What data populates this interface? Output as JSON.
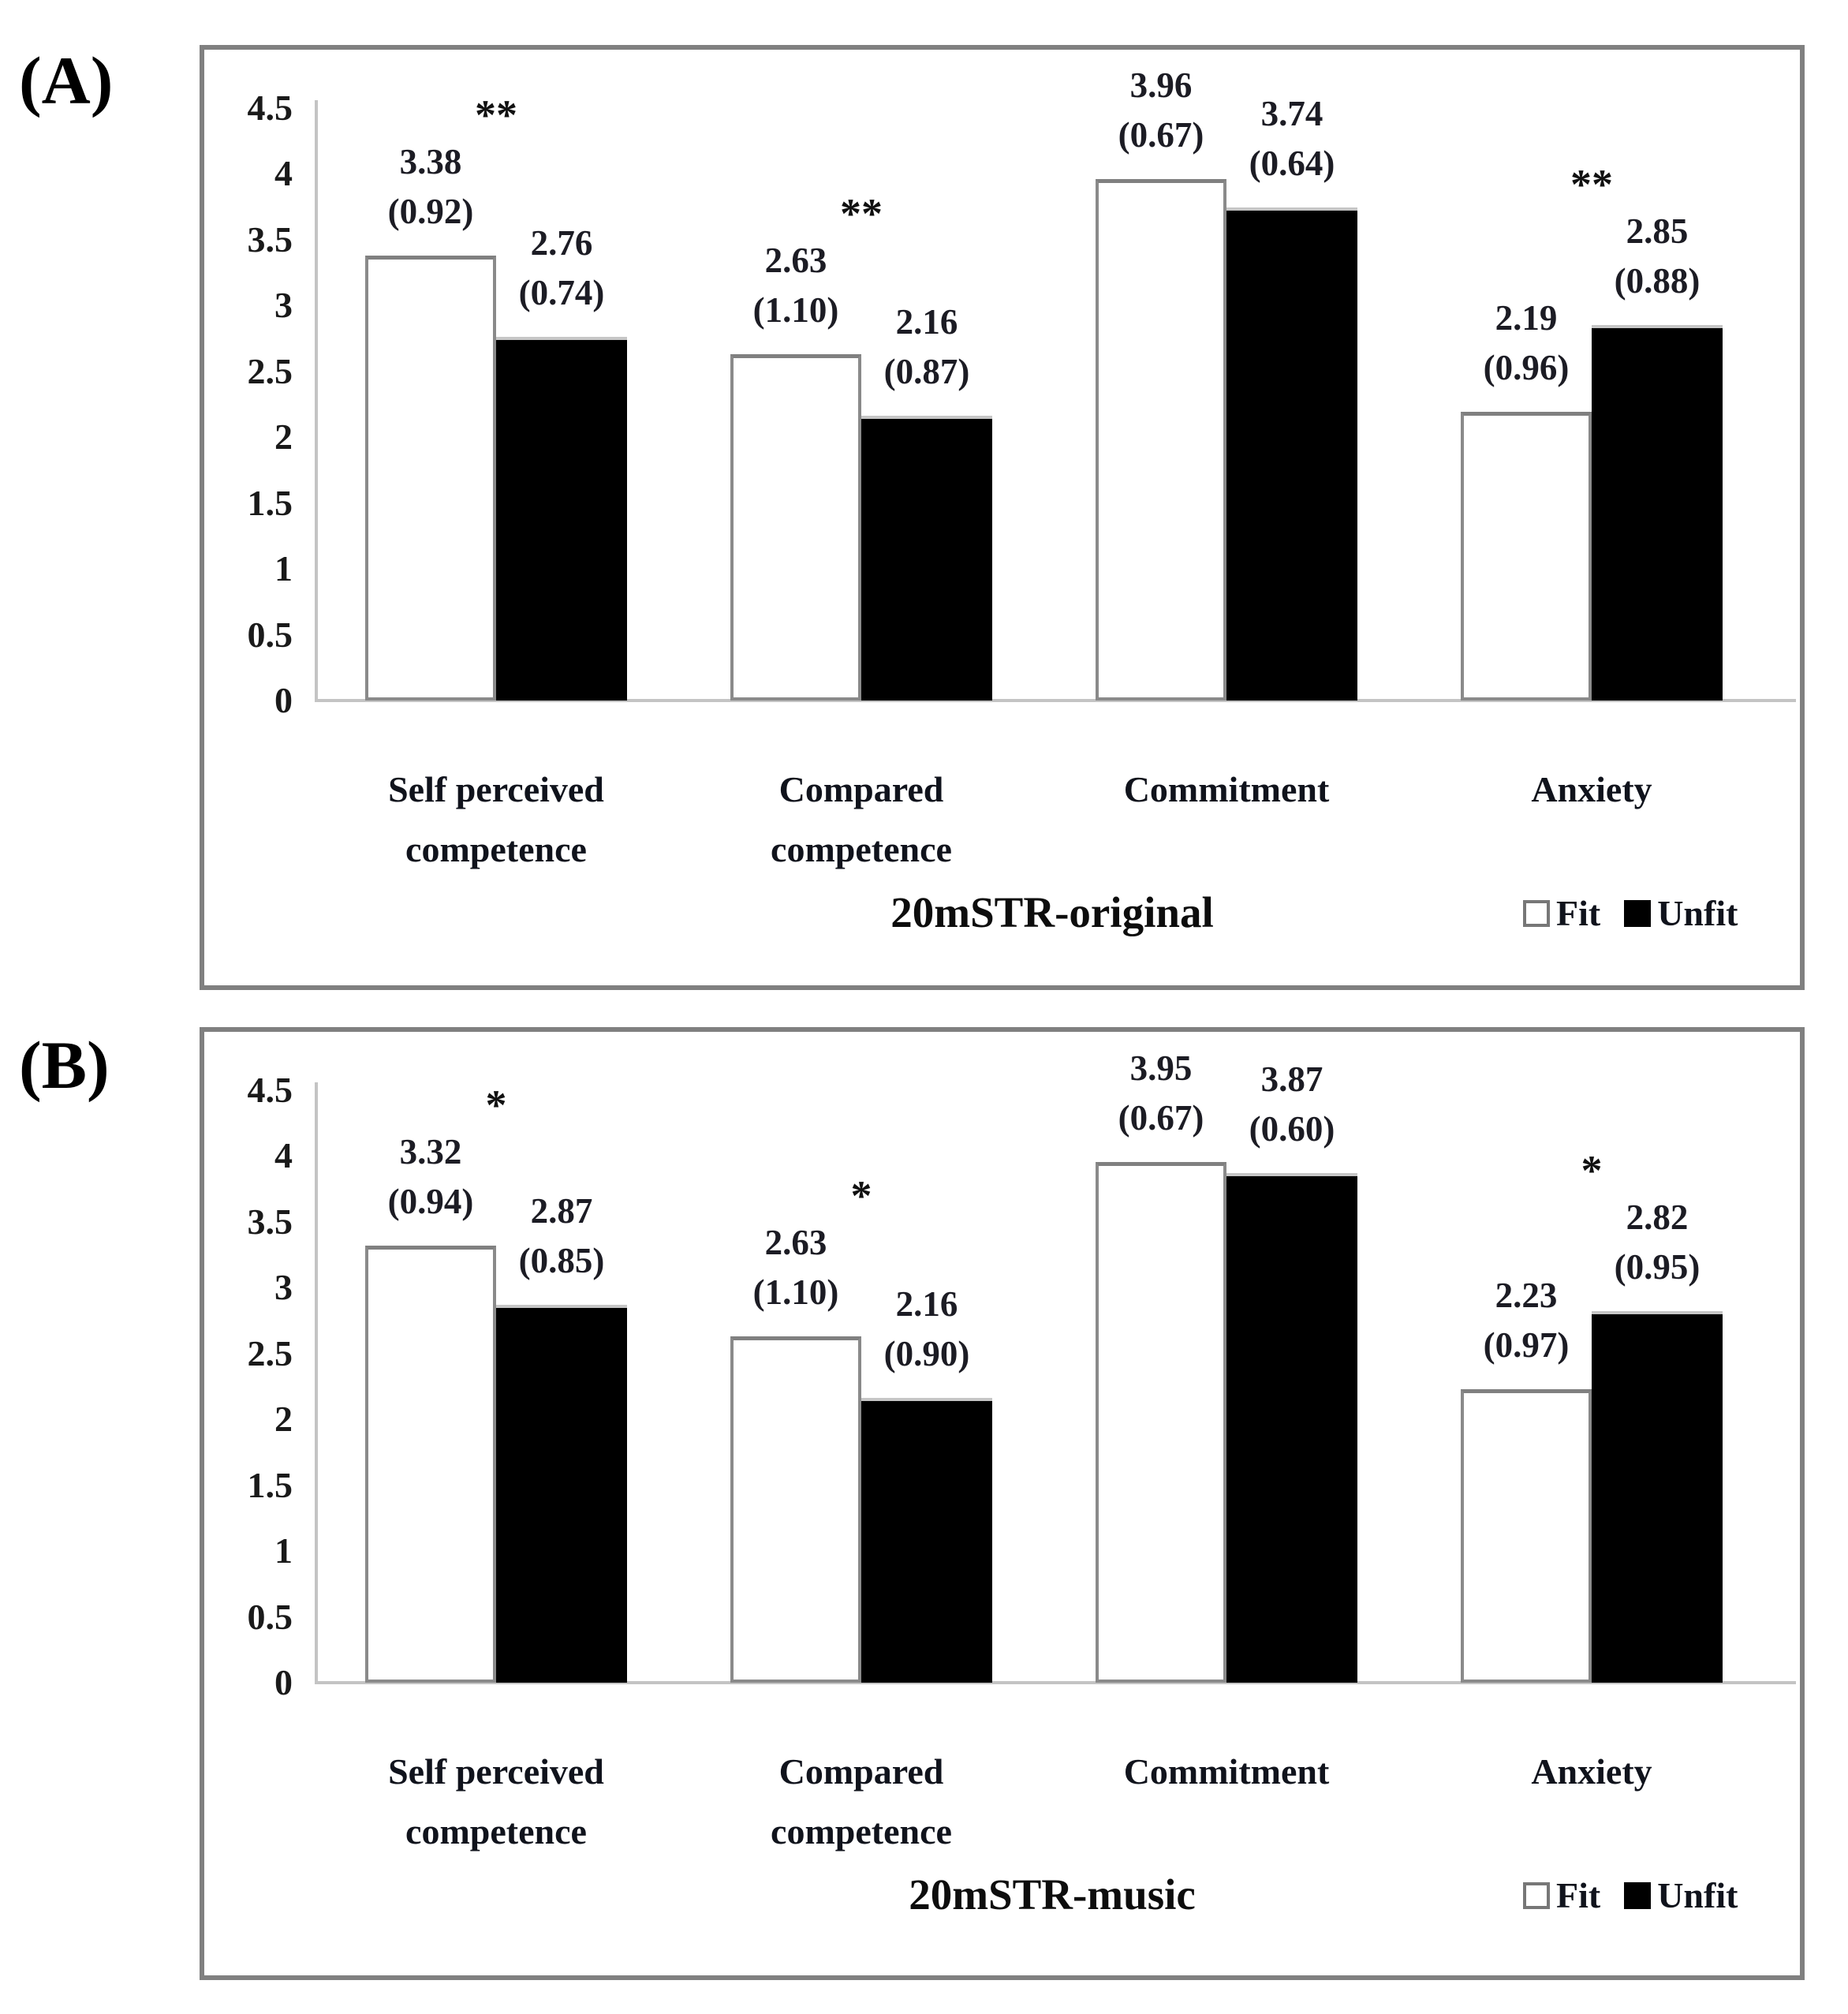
{
  "figure": {
    "panel_labels": [
      "(A)",
      "(B)"
    ],
    "legend": {
      "fit": "Fit",
      "unfit": "Unfit"
    }
  },
  "chart_data": [
    {
      "type": "bar",
      "panel": "A",
      "title": "20mSTR-original",
      "categories": [
        "Self perceived competence",
        "Compared competence",
        "Commitment",
        "Anxiety"
      ],
      "series": [
        {
          "name": "Fit",
          "color": "#ffffff",
          "values": [
            3.38,
            2.63,
            3.96,
            2.19
          ],
          "sd": [
            0.92,
            1.1,
            0.67,
            0.96
          ]
        },
        {
          "name": "Unfit",
          "color": "#000000",
          "values": [
            2.76,
            2.16,
            3.74,
            2.85
          ],
          "sd": [
            0.74,
            0.87,
            0.64,
            0.88
          ]
        }
      ],
      "significance": [
        "**",
        "**",
        "",
        "**"
      ],
      "ylim": [
        0,
        4.5
      ],
      "ytick_step": 0.5,
      "grid": false,
      "legend_position": "bottom-right",
      "value_label_format": "mean (sd)"
    },
    {
      "type": "bar",
      "panel": "B",
      "title": "20mSTR-music",
      "categories": [
        "Self perceived competence",
        "Compared competence",
        "Commitment",
        "Anxiety"
      ],
      "series": [
        {
          "name": "Fit",
          "color": "#ffffff",
          "values": [
            3.32,
            2.63,
            3.95,
            2.23
          ],
          "sd": [
            0.94,
            1.1,
            0.67,
            0.97
          ]
        },
        {
          "name": "Unfit",
          "color": "#000000",
          "values": [
            2.87,
            2.16,
            3.87,
            2.82
          ],
          "sd": [
            0.85,
            0.9,
            0.6,
            0.95
          ]
        }
      ],
      "significance": [
        "*",
        "*",
        "",
        "*"
      ],
      "ylim": [
        0,
        4.5
      ],
      "ytick_step": 0.5,
      "grid": false,
      "legend_position": "bottom-right",
      "value_label_format": "mean (sd)"
    }
  ]
}
